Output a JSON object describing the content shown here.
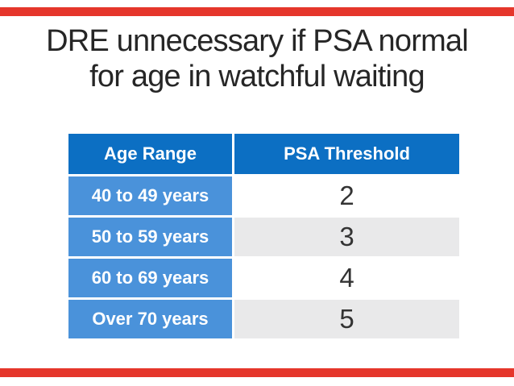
{
  "slide": {
    "title_line1": "DRE unnecessary if PSA normal",
    "title_line2": "for age in watchful waiting"
  },
  "table": {
    "headers": [
      "Age Range",
      "PSA Threshold"
    ],
    "rows": [
      {
        "age_range": "40 to 49 years",
        "psa_threshold": "2"
      },
      {
        "age_range": "50 to 59 years",
        "psa_threshold": "3"
      },
      {
        "age_range": "60 to 69 years",
        "psa_threshold": "4"
      },
      {
        "age_range": "Over 70 years",
        "psa_threshold": "5"
      }
    ]
  },
  "colors": {
    "header_blue": "#0c6fc3",
    "age_cell_blue": "#4a92da",
    "alt_row_gray": "#e9e9ea",
    "accent_red": "#e5362b",
    "title_text": "#262626",
    "value_text": "#333333"
  }
}
